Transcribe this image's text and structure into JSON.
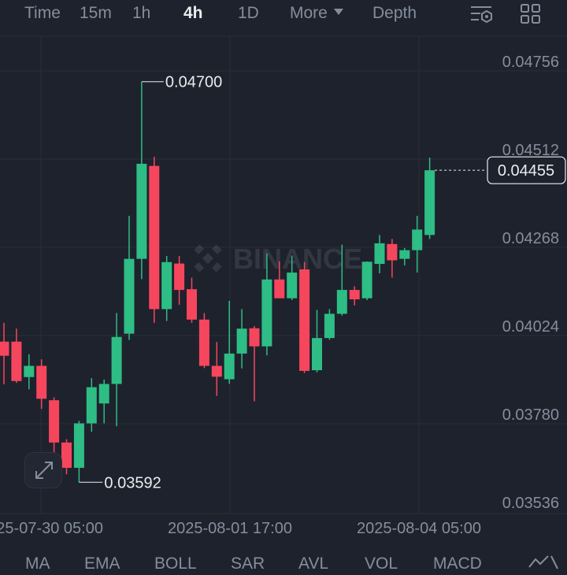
{
  "toolbar": {
    "tabs": [
      {
        "label": "Time",
        "active": false
      },
      {
        "label": "15m",
        "active": false
      },
      {
        "label": "1h",
        "active": false
      },
      {
        "label": "4h",
        "active": true
      },
      {
        "label": "1D",
        "active": false
      }
    ],
    "more_label": "More",
    "depth_label": "Depth",
    "icons": [
      "chart-settings-icon",
      "layout-grid-icon"
    ]
  },
  "watermark": "BINANCE",
  "colors": {
    "up": "#2ebd85",
    "down": "#f6465d",
    "grid": "#2a2e39",
    "text": "#848e9c",
    "background": "#1e222d"
  },
  "chart_data": {
    "type": "candlestick",
    "interval": "4h",
    "y_ticks": [
      "0.04756",
      "0.04512",
      "0.04268",
      "0.04024",
      "0.03780",
      "0.03536"
    ],
    "x_ticks": [
      "2025-07-30 05:00",
      "2025-08-01 17:00",
      "2025-08-04 05:00"
    ],
    "ylim": [
      0.03536,
      0.04756
    ],
    "last_price": "0.04455",
    "high_marker": "0.04700",
    "low_marker": "0.03592",
    "candles": [
      {
        "o": 0.03981,
        "h": 0.04033,
        "l": 0.03863,
        "c": 0.03942
      },
      {
        "o": 0.03981,
        "h": 0.04017,
        "l": 0.03867,
        "c": 0.03872
      },
      {
        "o": 0.03883,
        "h": 0.03946,
        "l": 0.03849,
        "c": 0.03914
      },
      {
        "o": 0.03914,
        "h": 0.03932,
        "l": 0.03795,
        "c": 0.03823
      },
      {
        "o": 0.03819,
        "h": 0.03827,
        "l": 0.03667,
        "c": 0.03702
      },
      {
        "o": 0.03702,
        "h": 0.03711,
        "l": 0.03614,
        "c": 0.03632
      },
      {
        "o": 0.03632,
        "h": 0.03762,
        "l": 0.03592,
        "c": 0.03755
      },
      {
        "o": 0.03755,
        "h": 0.0388,
        "l": 0.03732,
        "c": 0.03855
      },
      {
        "o": 0.0381,
        "h": 0.03876,
        "l": 0.03755,
        "c": 0.03864
      },
      {
        "o": 0.03864,
        "h": 0.0406,
        "l": 0.03747,
        "c": 0.03994
      },
      {
        "o": 0.04003,
        "h": 0.04329,
        "l": 0.03986,
        "c": 0.0421
      },
      {
        "o": 0.0421,
        "h": 0.047,
        "l": 0.04154,
        "c": 0.04473
      },
      {
        "o": 0.04467,
        "h": 0.04492,
        "l": 0.04033,
        "c": 0.04071
      },
      {
        "o": 0.04071,
        "h": 0.04218,
        "l": 0.04038,
        "c": 0.04201
      },
      {
        "o": 0.04197,
        "h": 0.04218,
        "l": 0.04083,
        "c": 0.04124
      },
      {
        "o": 0.04126,
        "h": 0.04158,
        "l": 0.04033,
        "c": 0.04042
      },
      {
        "o": 0.04042,
        "h": 0.0406,
        "l": 0.03908,
        "c": 0.03914
      },
      {
        "o": 0.03914,
        "h": 0.0398,
        "l": 0.03831,
        "c": 0.03884
      },
      {
        "o": 0.03877,
        "h": 0.04094,
        "l": 0.03864,
        "c": 0.03948
      },
      {
        "o": 0.03948,
        "h": 0.04071,
        "l": 0.03907,
        "c": 0.04017
      },
      {
        "o": 0.04018,
        "h": 0.04024,
        "l": 0.03816,
        "c": 0.03968
      },
      {
        "o": 0.03968,
        "h": 0.04225,
        "l": 0.03943,
        "c": 0.04153
      },
      {
        "o": 0.04153,
        "h": 0.04203,
        "l": 0.04101,
        "c": 0.04101
      },
      {
        "o": 0.04101,
        "h": 0.04219,
        "l": 0.04096,
        "c": 0.04172
      },
      {
        "o": 0.04181,
        "h": 0.04201,
        "l": 0.03894,
        "c": 0.039
      },
      {
        "o": 0.03902,
        "h": 0.04069,
        "l": 0.03896,
        "c": 0.03991
      },
      {
        "o": 0.03991,
        "h": 0.04071,
        "l": 0.03986,
        "c": 0.04058
      },
      {
        "o": 0.04058,
        "h": 0.04249,
        "l": 0.04053,
        "c": 0.04124
      },
      {
        "o": 0.04124,
        "h": 0.04134,
        "l": 0.04081,
        "c": 0.04098
      },
      {
        "o": 0.04101,
        "h": 0.04203,
        "l": 0.04096,
        "c": 0.04202
      },
      {
        "o": 0.04196,
        "h": 0.04276,
        "l": 0.0417,
        "c": 0.04253
      },
      {
        "o": 0.04251,
        "h": 0.04265,
        "l": 0.04158,
        "c": 0.04206
      },
      {
        "o": 0.0421,
        "h": 0.0424,
        "l": 0.04192,
        "c": 0.04234
      },
      {
        "o": 0.04234,
        "h": 0.04329,
        "l": 0.04172,
        "c": 0.04291
      },
      {
        "o": 0.04276,
        "h": 0.0449,
        "l": 0.04265,
        "c": 0.04455
      }
    ]
  },
  "indicators": [
    "MA",
    "EMA",
    "BOLL",
    "SAR",
    "AVL",
    "VOL",
    "MACD"
  ]
}
